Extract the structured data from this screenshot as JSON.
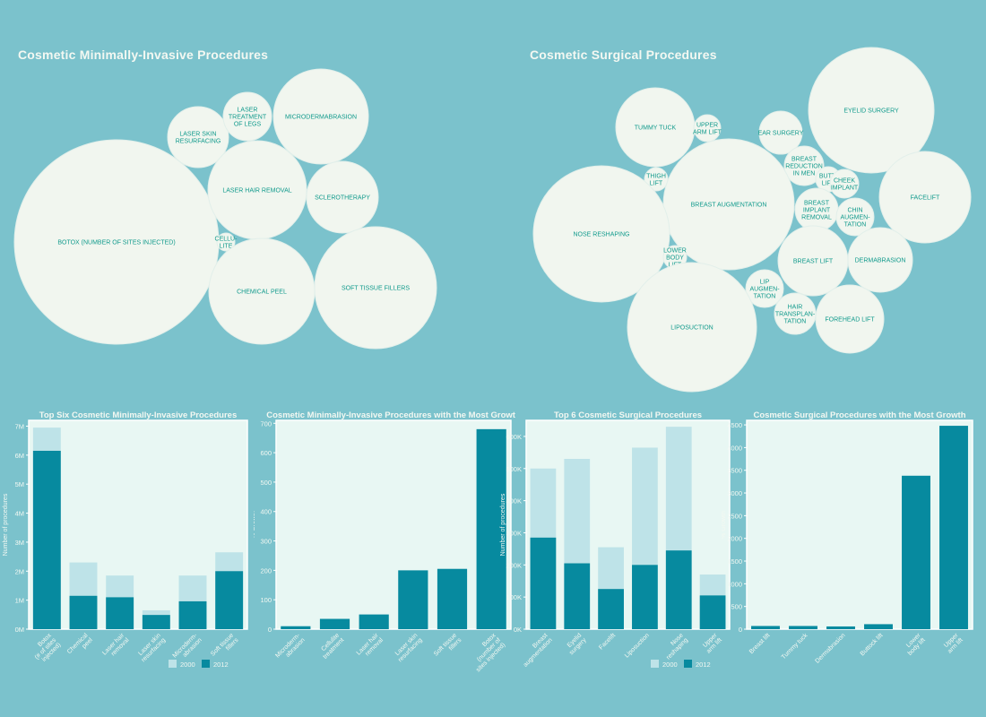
{
  "sections": {
    "minimal_title": "Cosmetic Minimally-Invasive Procedures",
    "surgical_title": "Cosmetic Surgical Procedures"
  },
  "colors": {
    "page_bg": "#7bc2cc",
    "bubble": "#f1f6ef",
    "bubble_text": "#119a8c",
    "chart_bg": "#e8f7f3",
    "bar_2000": "#bee3e8",
    "bar_2012": "#078a9f"
  },
  "bubbles_minimal": [
    {
      "label": "BOTOX (NUMBER OF SITES INJECTED)"
    },
    {
      "label": "LASER SKIN|RESURFACING"
    },
    {
      "label": "LASER|TREATMENT|OF LEGS"
    },
    {
      "label": "MICRODERMABRASION"
    },
    {
      "label": "LASER HAIR REMOVAL"
    },
    {
      "label": "SCLEROTHERAPY"
    },
    {
      "label": "CELLU-|LITE"
    },
    {
      "label": "CHEMICAL PEEL"
    },
    {
      "label": "SOFT TISSUE FILLERS"
    }
  ],
  "bubbles_surgical": [
    {
      "label": "TUMMY TUCK"
    },
    {
      "label": "UPPER|ARM LIFT"
    },
    {
      "label": "EAR SURGERY"
    },
    {
      "label": "EYELID SURGERY"
    },
    {
      "label": "BREAST|REDUCTION|IN MEN"
    },
    {
      "label": "BUTT-|LIFT"
    },
    {
      "label": "CHEEK|IMPLANT"
    },
    {
      "label": "THIGH|LIFT"
    },
    {
      "label": "BREAST AUGMENTATION"
    },
    {
      "label": "BREAST|IMPLANT|REMOVAL"
    },
    {
      "label": "CHIN|AUGMEN-|TATION"
    },
    {
      "label": "FACELIFT"
    },
    {
      "label": "NOSE RESHAPING"
    },
    {
      "label": "LOWER|BODY|LIFT"
    },
    {
      "label": "BREAST LIFT"
    },
    {
      "label": "DERMABRASION"
    },
    {
      "label": "LIP|AUGMEN-|TATION"
    },
    {
      "label": "HAIR|TRANSPLAN-|TATION"
    },
    {
      "label": "FOREHEAD LIFT"
    },
    {
      "label": "LIPOSUCTION"
    }
  ],
  "chart_data": [
    {
      "type": "bar",
      "title": "Top Six Cosmetic Minimally-Invasive Procedures",
      "ylabel": "Number of procedures",
      "xlabel": "",
      "ylim": [
        0,
        7200000
      ],
      "yticks": [
        0,
        1000000,
        2000000,
        3000000,
        4000000,
        5000000,
        6000000,
        7000000
      ],
      "ytick_labels": [
        "0M",
        "1M",
        "2M",
        "3M",
        "4M",
        "5M",
        "6M",
        "7M"
      ],
      "categories": [
        "Botox|(# of sites|injected)",
        "Chemical|peel",
        "Laser hair|removal",
        "Laser skin|resurfacing",
        "Microderm-|abrasion",
        "Soft tissue|fillers"
      ],
      "stacked_overlay": true,
      "series": [
        {
          "name": "2000",
          "values": [
            6950000,
            2300000,
            1850000,
            650000,
            1850000,
            2650000
          ]
        },
        {
          "name": "2012",
          "values": [
            6150000,
            1150000,
            1100000,
            490000,
            960000,
            2000000
          ]
        }
      ],
      "legend": [
        "2000",
        "2012"
      ],
      "legend_position": "bottom-right"
    },
    {
      "type": "bar",
      "title": "Cosmetic Minimally-Invasive Procedures with the Most Growth",
      "ylabel": "% Growth",
      "xlabel": "",
      "ylim": [
        0,
        710
      ],
      "yticks": [
        0,
        100,
        200,
        300,
        400,
        500,
        600,
        700
      ],
      "ytick_labels": [
        "0",
        "100",
        "200",
        "300",
        "400",
        "500",
        "600",
        "700"
      ],
      "categories": [
        "Microderm-|abrasion",
        "Cellulite|treatment",
        "Laser hair|removal",
        "Laser skin|resurfacing",
        "Soft tissue|fillers",
        "Botox|(number of|sites injected)"
      ],
      "series": [
        {
          "name": "",
          "values": [
            10,
            35,
            50,
            200,
            205,
            680
          ]
        }
      ]
    },
    {
      "type": "bar",
      "title": "Top 6 Cosmetic Surgical Procedures",
      "ylabel": "Number of procedures",
      "xlabel": "",
      "ylim": [
        0,
        650000
      ],
      "yticks": [
        0,
        100000,
        200000,
        300000,
        400000,
        500000,
        600000
      ],
      "ytick_labels": [
        "0K",
        "100K",
        "200K",
        "300K",
        "400K",
        "500K",
        "600K"
      ],
      "categories": [
        "Breast|augmentation",
        "Eyelid|surgery",
        "Facelift",
        "Liposuction",
        "Nose|reshaping",
        "Upper|arm lift"
      ],
      "stacked_overlay": true,
      "series": [
        {
          "name": "2000",
          "values": [
            500000,
            530000,
            255000,
            565000,
            630000,
            170000
          ]
        },
        {
          "name": "2012",
          "values": [
            285000,
            205000,
            125000,
            200000,
            245000,
            105000
          ]
        }
      ],
      "legend": [
        "2000",
        "2012"
      ],
      "legend_position": "bottom-right"
    },
    {
      "type": "bar",
      "title": "Cosmetic Surgical Procedures with the Most Growth",
      "ylabel": "% Growth",
      "xlabel": "",
      "ylim": [
        0,
        4600
      ],
      "yticks": [
        0,
        500,
        1000,
        1500,
        2000,
        2500,
        3000,
        3500,
        4000,
        4500
      ],
      "ytick_labels": [
        "0",
        "500",
        "1000",
        "1500",
        "2000",
        "2500",
        "3000",
        "3500",
        "4000",
        "4500"
      ],
      "categories": [
        "Breast lift",
        "Tummy tuck",
        "Dermabrasion",
        "Buttock lift",
        "Lower|body lift",
        "Upper|arm lift"
      ],
      "series": [
        {
          "name": "",
          "values": [
            70,
            70,
            60,
            110,
            3380,
            4480
          ]
        }
      ]
    }
  ]
}
